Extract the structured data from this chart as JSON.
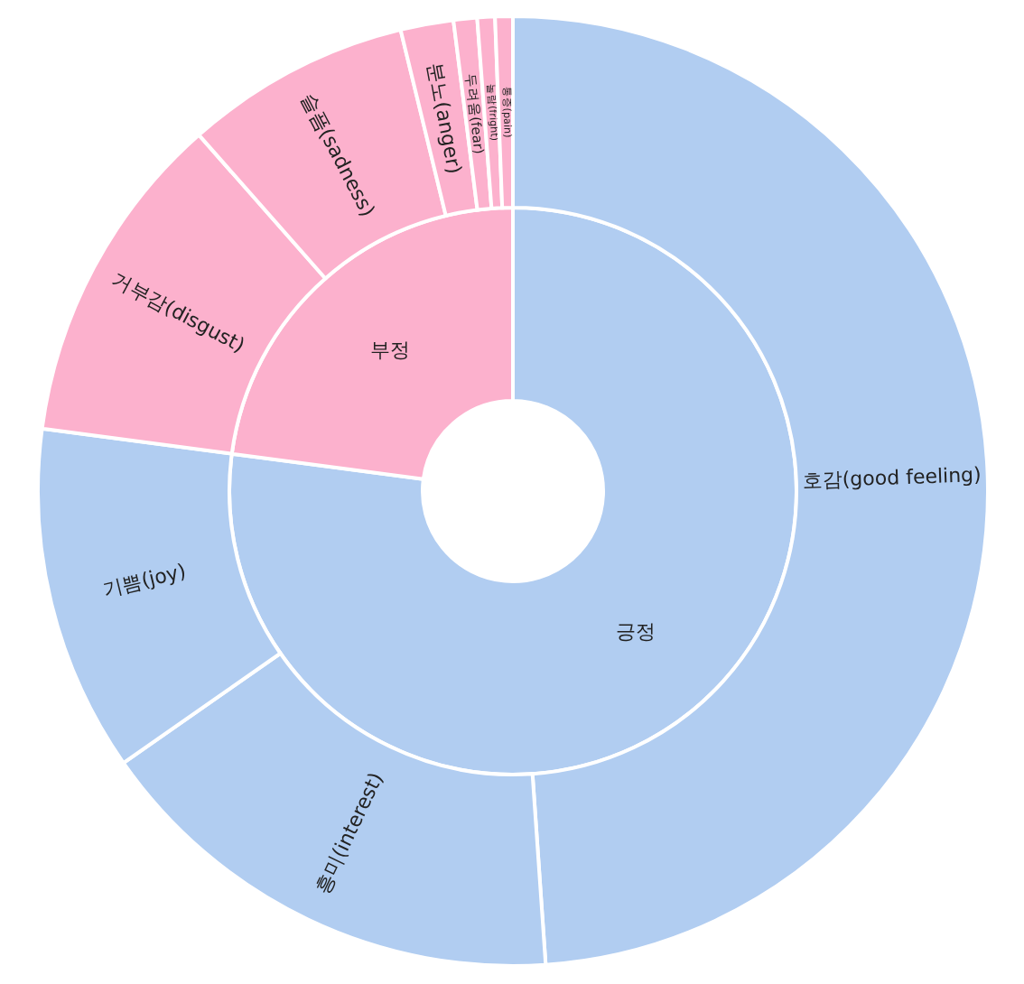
{
  "chart_data": [
    {
      "type": "donut",
      "categories": [
        "긍정",
        "부정"
      ],
      "values": [
        77.1,
        22.9
      ],
      "colors": [
        "#b1cdf1",
        "#fcb1cd"
      ]
    },
    {
      "type": "donut",
      "categories": [
        "호감(good feeling)",
        "흥미(interest)",
        "기쁨(joy)",
        "거부감(disgust)",
        "슬픔(sadness)",
        "분노(anger)",
        "두려움(fear)",
        "놀람(fright)",
        "통증(pain)"
      ],
      "values": [
        48.9,
        16.4,
        11.8,
        11.4,
        7.7,
        1.8,
        0.8,
        0.6,
        0.6
      ],
      "colors": [
        "#b1cdf1",
        "#b1cdf1",
        "#b1cdf1",
        "#fcb1cd",
        "#fcb1cd",
        "#fcb1cd",
        "#fcb1cd",
        "#fcb1cd",
        "#fcb1cd"
      ]
    }
  ]
}
